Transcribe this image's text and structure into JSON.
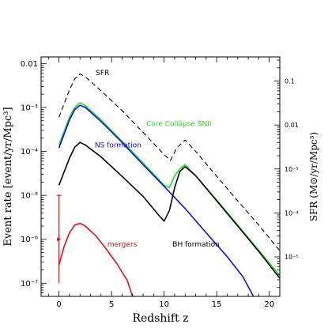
{
  "chart_data": {
    "type": "line",
    "xlabel": "Redshift z",
    "ylabel": "Event rate [event/yr/Mpc³]",
    "y2label": "SFR (M⊙/yr/Mpc³)",
    "xlim": [
      -1.7,
      21
    ],
    "ylim_log10": [
      -7.3,
      -1.85
    ],
    "y2lim_log10": [
      -5.9,
      -0.45
    ],
    "y_scale": "log",
    "y2_scale": "log",
    "grid": false,
    "legend": "none",
    "x_ticks": [
      0,
      5,
      10,
      15,
      20
    ],
    "x_tick_labels": [
      "0",
      "5",
      "10",
      "15",
      "20"
    ],
    "y_ticks_log10": [
      -7,
      -6,
      -5,
      -4,
      -3,
      -2
    ],
    "y_tick_labels": [
      "10⁻⁷",
      "10⁻⁶",
      "10⁻⁵",
      "10⁻⁴",
      "10⁻³",
      "0.01"
    ],
    "y2_ticks_log10": [
      -5,
      -4,
      -3,
      -2,
      -1
    ],
    "y2_tick_labels": [
      "10⁻⁵",
      "10⁻⁴",
      "10⁻³",
      "0.01",
      "0.1"
    ],
    "series": [
      {
        "name": "SFR",
        "color": "#000000",
        "dash": true,
        "points": [
          [
            0,
            0.0006
          ],
          [
            1,
            0.0025
          ],
          [
            1.5,
            0.0045
          ],
          [
            2,
            0.0058
          ],
          [
            2.5,
            0.005
          ],
          [
            4,
            0.0024
          ],
          [
            6,
            0.00085
          ],
          [
            8,
            0.00027
          ],
          [
            10,
            8.5e-05
          ],
          [
            10.6,
            6.2e-05
          ],
          [
            11.2,
            0.00012
          ],
          [
            12,
            0.00018
          ],
          [
            13,
            0.0001
          ],
          [
            15,
            2.7e-05
          ],
          [
            17,
            7.5e-06
          ],
          [
            19,
            2.1e-06
          ],
          [
            21,
            5.5e-07
          ]
        ]
      },
      {
        "name": "Core Collapse SNII",
        "color": "#22e022",
        "dash": false,
        "points": [
          [
            0,
            0.00014
          ],
          [
            1,
            0.0006
          ],
          [
            1.5,
            0.001
          ],
          [
            2,
            0.00128
          ],
          [
            2.5,
            0.0011
          ],
          [
            4,
            0.00052
          ],
          [
            6,
            0.00017
          ],
          [
            8,
            5.5e-05
          ],
          [
            10,
            1.7e-05
          ],
          [
            10.5,
            1.5e-05
          ],
          [
            11,
            2.8e-05
          ],
          [
            11.5,
            4e-05
          ],
          [
            12,
            5e-05
          ],
          [
            13,
            2.8e-05
          ],
          [
            15,
            7.8e-06
          ],
          [
            17,
            2.1e-06
          ],
          [
            19,
            5.6e-07
          ],
          [
            21,
            1.5e-07
          ]
        ]
      },
      {
        "name": "NS formation",
        "color": "#1010e0",
        "dash": false,
        "points": [
          [
            0,
            0.00012
          ],
          [
            1,
            0.00052
          ],
          [
            1.5,
            0.0009
          ],
          [
            2,
            0.00112
          ],
          [
            2.5,
            0.001
          ],
          [
            4,
            0.00048
          ],
          [
            6,
            0.00016
          ],
          [
            8,
            5e-05
          ],
          [
            10,
            1.6e-05
          ],
          [
            12,
            5e-06
          ],
          [
            14,
            1.4e-06
          ],
          [
            16,
            4e-07
          ],
          [
            17.5,
            1.4e-07
          ],
          [
            18.5,
            5e-08
          ]
        ]
      },
      {
        "name": "BH formation",
        "color": "#000000",
        "dash": false,
        "points": [
          [
            0,
            1.7e-05
          ],
          [
            1,
            7e-05
          ],
          [
            1.5,
            0.000125
          ],
          [
            2,
            0.00016
          ],
          [
            2.5,
            0.00014
          ],
          [
            4,
            7.5e-05
          ],
          [
            6,
            2.7e-05
          ],
          [
            8,
            9.5e-06
          ],
          [
            9.5,
            3.5e-06
          ],
          [
            10,
            2.6e-06
          ],
          [
            10.5,
            4.5e-06
          ],
          [
            11,
            1.5e-05
          ],
          [
            11.5,
            3.5e-05
          ],
          [
            12,
            4.5e-05
          ],
          [
            13,
            2.8e-05
          ],
          [
            15,
            7.5e-06
          ],
          [
            17,
            2e-06
          ],
          [
            19,
            5.3e-07
          ],
          [
            21,
            1.3e-07
          ]
        ]
      },
      {
        "name": "mergers",
        "color": "#e01010",
        "dash": false,
        "points": [
          [
            0,
            2.6e-07
          ],
          [
            0.5,
            7e-07
          ],
          [
            1,
            1.4e-06
          ],
          [
            1.5,
            2.1e-06
          ],
          [
            2,
            2.3e-06
          ],
          [
            2.5,
            2e-06
          ],
          [
            3.5,
            1.2e-06
          ],
          [
            4.5,
            6e-07
          ],
          [
            5.5,
            2.8e-07
          ],
          [
            6.5,
            1.15e-07
          ],
          [
            7,
            5e-08
          ]
        ]
      }
    ],
    "annotations": [
      {
        "text": "SFR",
        "x": 3.5,
        "y": 0.0055,
        "color": "#000000"
      },
      {
        "text": "Core Collapse SNII",
        "x": 8.3,
        "y": 0.00038,
        "color": "#22e022"
      },
      {
        "text": "NS formation",
        "x": 3.4,
        "y": 0.000122,
        "color": "#1010e0"
      },
      {
        "text": "BH formation",
        "x": 10.8,
        "y": 6.8e-07,
        "color": "#000000"
      },
      {
        "text": "mergers",
        "x": 4.6,
        "y": 6.8e-07,
        "color": "#e01010"
      }
    ],
    "error_bar": {
      "x": 0,
      "y": 1e-06,
      "y_low": 1e-07,
      "y_high": 1e-05,
      "color": "#e01010"
    }
  }
}
